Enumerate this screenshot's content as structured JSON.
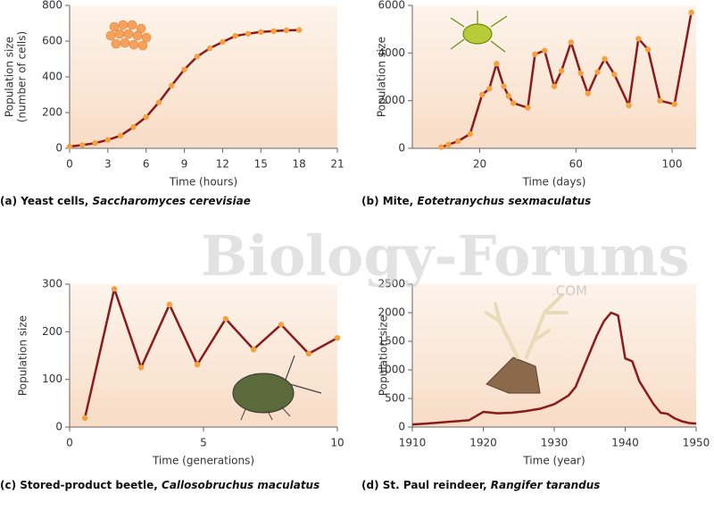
{
  "chart_data": [
    {
      "type": "line",
      "caption": "(a) Yeast cells, ",
      "caption_species": "Saccharomyces cerevisiae",
      "ylabel": [
        "Population size",
        "(number of cells)"
      ],
      "xlabel": "Time (hours)",
      "x": [
        0,
        1,
        2,
        3,
        4,
        5,
        6,
        7,
        8,
        9,
        10,
        11,
        12,
        13,
        14,
        15,
        16,
        17,
        18
      ],
      "values": [
        10,
        18,
        29,
        47,
        71,
        119,
        175,
        257,
        351,
        441,
        513,
        560,
        595,
        629,
        641,
        651,
        656,
        660,
        662
      ],
      "xlim": [
        0,
        21
      ],
      "xticks": [
        0,
        3,
        6,
        9,
        12,
        15,
        18,
        21
      ],
      "ylim": [
        0,
        800
      ],
      "yticks": [
        0,
        200,
        400,
        600,
        800
      ],
      "color": "#8b1a1a",
      "marker_color": "#f5a040",
      "markers": true
    },
    {
      "type": "line",
      "caption": "(b) Mite, ",
      "caption_species": "Eotetranychus sexmaculatus",
      "ylabel": [
        "Population size"
      ],
      "xlabel": "Time (days)",
      "x": [
        4,
        7,
        11,
        16,
        21,
        24,
        27,
        30,
        32,
        34,
        40,
        43,
        47,
        51,
        54,
        58,
        62,
        65,
        69,
        72,
        76,
        82,
        86,
        90,
        95,
        101,
        108
      ],
      "values": [
        50,
        150,
        300,
        600,
        2250,
        2500,
        3550,
        2600,
        2200,
        1900,
        1700,
        3950,
        4100,
        2600,
        3250,
        4450,
        3150,
        2300,
        3200,
        3750,
        3100,
        1800,
        4600,
        4150,
        2000,
        1850,
        5700
      ],
      "xlim": [
        -8,
        110
      ],
      "xticks": [
        20,
        60,
        100
      ],
      "ylim": [
        0,
        6000
      ],
      "yticks": [
        0,
        2000,
        4000,
        6000
      ],
      "color": "#8b1a1a",
      "marker_color": "#f5a040",
      "markers": true
    },
    {
      "type": "line",
      "caption": "(c) Stored-product beetle, ",
      "caption_species": "Callosobruchus maculatus",
      "ylabel": [
        "Population size"
      ],
      "xlabel": "Time (generations)",
      "x": [
        0.57,
        1.67,
        2.67,
        3.73,
        4.77,
        5.83,
        6.87,
        7.9,
        8.93,
        10
      ],
      "values": [
        19,
        290,
        125,
        257,
        131,
        227,
        163,
        215,
        154,
        187
      ],
      "xlim": [
        0,
        10
      ],
      "xticks": [
        0,
        5,
        10
      ],
      "ylim": [
        0,
        300
      ],
      "yticks": [
        0,
        100,
        200,
        300
      ],
      "color": "#8b1a1a",
      "marker_color": "#f5a040",
      "markers": true
    },
    {
      "type": "line",
      "caption": "(d) St. Paul reindeer, ",
      "caption_species": "Rangifer tarandus",
      "ylabel": [
        "Population size"
      ],
      "xlabel": "Time (year)",
      "x": [
        1910,
        1912,
        1914,
        1916,
        1918,
        1920,
        1922,
        1924,
        1926,
        1928,
        1930,
        1932,
        1933,
        1934,
        1935,
        1936,
        1937,
        1938,
        1939,
        1940,
        1941,
        1942,
        1943,
        1944,
        1945,
        1946,
        1947,
        1948,
        1949,
        1950
      ],
      "values": [
        45,
        60,
        80,
        100,
        120,
        265,
        240,
        250,
        280,
        320,
        400,
        550,
        700,
        1000,
        1300,
        1600,
        1850,
        2000,
        1950,
        1200,
        1150,
        800,
        600,
        400,
        250,
        230,
        150,
        100,
        70,
        60
      ],
      "xlim": [
        1910,
        1950
      ],
      "xticks": [
        1910,
        1920,
        1930,
        1940,
        1950
      ],
      "ylim": [
        0,
        2500
      ],
      "yticks": [
        0,
        500,
        1000,
        1500,
        2000,
        2500
      ],
      "color": "#8b1a1a",
      "marker_color": "#f5a040",
      "markers": false
    }
  ],
  "watermark": {
    "text": "Biology-Forums",
    "suffix": ".COM"
  }
}
